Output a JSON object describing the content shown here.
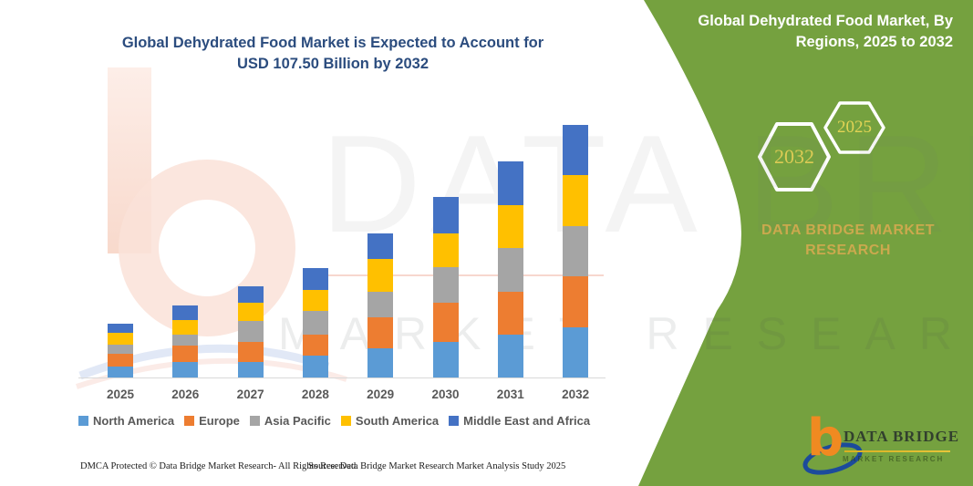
{
  "chart": {
    "title_line1": "Global Dehydrated Food Market is Expected to Account for",
    "title_line2": "USD 107.50 Billion by 2032",
    "title_color": "#2B4C7E"
  },
  "chart_data": {
    "type": "bar",
    "stacked": true,
    "title": "Global Dehydrated Food Market is Expected to Account for USD 107.50 Billion by 2032",
    "unit": "USD Billion",
    "xlabel": "",
    "ylabel": "",
    "ylim": [
      0,
      110
    ],
    "grid": false,
    "legend_position": "bottom",
    "categories": [
      "2025",
      "2026",
      "2027",
      "2028",
      "2029",
      "2030",
      "2031",
      "2032"
    ],
    "series": [
      {
        "name": "North America",
        "color": "#5B9BD5",
        "values": [
          4.8,
          6.7,
          6.7,
          9.2,
          12.3,
          15.1,
          18.4,
          21.2
        ]
      },
      {
        "name": "Europe",
        "color": "#ED7D31",
        "values": [
          5.2,
          6.9,
          8.4,
          9.0,
          13.2,
          16.6,
          18.1,
          21.9
        ]
      },
      {
        "name": "Asia Pacific",
        "color": "#A5A5A5",
        "values": [
          4.1,
          4.8,
          8.8,
          10.1,
          11.0,
          15.1,
          18.7,
          21.5
        ]
      },
      {
        "name": "South America",
        "color": "#FFC000",
        "values": [
          4.9,
          6.2,
          7.8,
          8.8,
          14.0,
          14.6,
          18.2,
          21.6
        ]
      },
      {
        "name": "Middle East and Africa",
        "color": "#4472C4",
        "values": [
          4.0,
          6.1,
          7.1,
          9.4,
          11.0,
          15.5,
          18.6,
          21.3
        ]
      }
    ],
    "totals": [
      23.0,
      30.7,
      38.8,
      46.5,
      61.5,
      76.9,
      92.0,
      107.5
    ]
  },
  "panel": {
    "title": "Global Dehydrated Food Market, By Regions, 2025 to 2032",
    "bg_color": "#75A13F",
    "hex_large_label": "2032",
    "hex_small_label": "2025",
    "brand_line1": "DATA BRIDGE MARKET",
    "brand_line2": "RESEARCH",
    "logo": {
      "glyph": "b",
      "name": "DATA BRIDGE",
      "tagline": "MARKET RESEARCH"
    }
  },
  "watermark": {
    "line1": "DATA BRIDGE",
    "line2": "MARKET RESEARCH"
  },
  "footer": {
    "dmca": "DMCA Protected © Data Bridge Market Research-  All Rights Reserved.",
    "source": "Source: Data Bridge Market Research  Market Analysis Study 2025"
  }
}
